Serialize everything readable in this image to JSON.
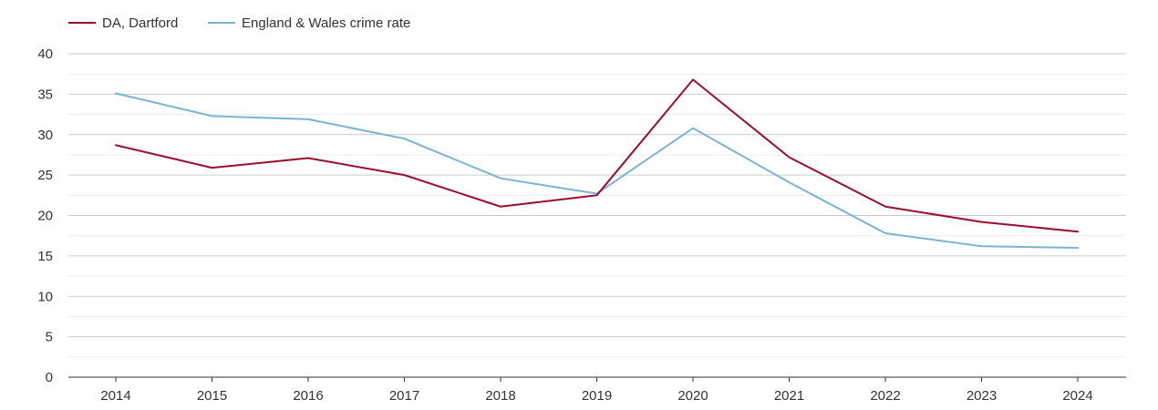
{
  "chart_data": {
    "type": "line",
    "title": "",
    "xlabel": "",
    "ylabel": "",
    "x": [
      "2014",
      "2015",
      "2016",
      "2017",
      "2018",
      "2019",
      "2020",
      "2021",
      "2022",
      "2023",
      "2024"
    ],
    "ylim": [
      0,
      40
    ],
    "y_ticks": [
      "0",
      "5",
      "10",
      "15",
      "20",
      "25",
      "30",
      "35",
      "40"
    ],
    "grid": true,
    "legend_position": "top-left",
    "series": [
      {
        "name": "DA, Dartford",
        "color": "#9b0d2e",
        "values": [
          28.7,
          25.9,
          27.1,
          25.0,
          21.1,
          22.5,
          36.8,
          27.2,
          21.1,
          19.2,
          18.0
        ]
      },
      {
        "name": "England & Wales crime rate",
        "color": "#7bb3d1",
        "values": [
          35.1,
          32.3,
          31.9,
          29.5,
          24.6,
          22.7,
          30.8,
          24.1,
          17.8,
          16.2,
          16.0
        ]
      }
    ]
  }
}
